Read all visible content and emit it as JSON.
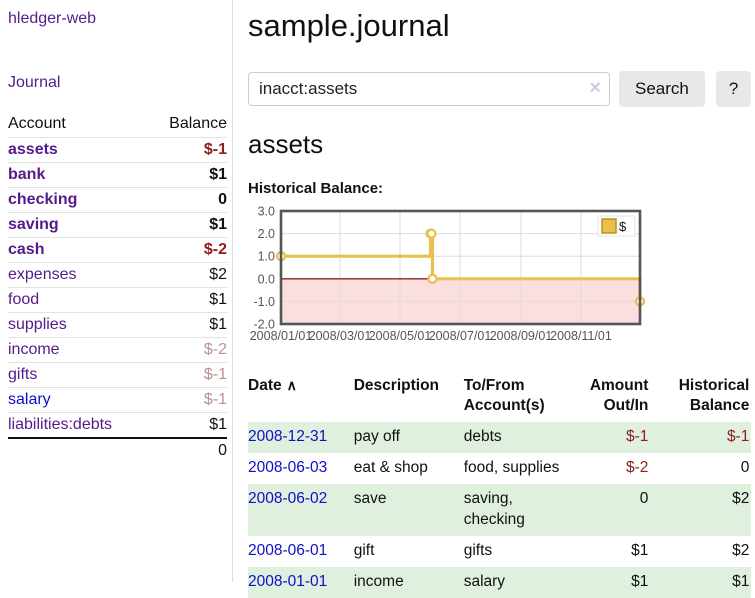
{
  "colors": {
    "purple-link": "#551a8b",
    "blue-link": "#0f0fc4",
    "negative-strong": "#8f1d1d",
    "negative-muted": "#bc8f8f",
    "row-green": "#dff0df",
    "button-bg": "#e8e8e8",
    "divider": "#dcdcdc",
    "chart-gold": "#e9c04d",
    "chart-gold-dark": "#b8941f",
    "chart-pink": "#fbdfdf",
    "chart-zero-line": "#8b2222",
    "chart-border": "#555555",
    "chart-grid": "#dddddd",
    "axis-text": "#555555"
  },
  "sidebar": {
    "app_title": "hledger-web",
    "journal_link": "Journal",
    "accounts": {
      "headers": {
        "account": "Account",
        "balance": "Balance"
      },
      "rows": [
        {
          "name": "assets",
          "balance": "$-1",
          "indent": 0,
          "bold": true
        },
        {
          "name": "bank",
          "balance": "$1",
          "indent": 1,
          "bold": true
        },
        {
          "name": "checking",
          "balance": "0",
          "indent": 2,
          "bold": true
        },
        {
          "name": "saving",
          "balance": "$1",
          "indent": 2,
          "bold": true
        },
        {
          "name": "cash",
          "balance": "$-2",
          "indent": 1,
          "bold": true
        },
        {
          "name": "expenses",
          "balance": "$2",
          "indent": 0,
          "bold": false
        },
        {
          "name": "food",
          "balance": "$1",
          "indent": 1,
          "bold": false
        },
        {
          "name": "supplies",
          "balance": "$1",
          "indent": 1,
          "bold": false
        },
        {
          "name": "income",
          "balance": "$-2",
          "indent": 0,
          "bold": false
        },
        {
          "name": "gifts",
          "balance": "$-1",
          "indent": 1,
          "bold": false
        },
        {
          "name": "salary",
          "balance": "$-1",
          "indent": 1,
          "bold": false,
          "link_color": "blue"
        },
        {
          "name": "liabilities:debts",
          "balance": "$1",
          "indent": 0,
          "bold": false
        }
      ],
      "total": "0"
    }
  },
  "main": {
    "title": "sample.journal",
    "search": {
      "value": "inacct:assets",
      "clear_icon": "×",
      "button": "Search",
      "help_button": "?"
    },
    "account_heading": "assets",
    "chart_title": "Historical Balance:"
  },
  "chart_data": {
    "type": "line",
    "step": true,
    "title": "Historical Balance:",
    "x_type": "date",
    "xlim": [
      "2008-01-01",
      "2008-12-31"
    ],
    "ylim": [
      -2,
      3
    ],
    "x_ticks": [
      {
        "label": "2008/01/01",
        "date": "2008-01-01"
      },
      {
        "label": "2008/03/01",
        "date": "2008-03-01"
      },
      {
        "label": "2008/05/01",
        "date": "2008-05-01"
      },
      {
        "label": "2008/07/01",
        "date": "2008-07-01"
      },
      {
        "label": "2008/09/01",
        "date": "2008-09-01"
      },
      {
        "label": "2008/11/01",
        "date": "2008-11-01"
      }
    ],
    "y_ticks": [
      {
        "label": "3.0",
        "value": 3
      },
      {
        "label": "2.0",
        "value": 2
      },
      {
        "label": "1.0",
        "value": 1
      },
      {
        "label": "0.0",
        "value": 0
      },
      {
        "label": "-1.0",
        "value": -1
      },
      {
        "label": "-2.0",
        "value": -2
      }
    ],
    "series": [
      {
        "name": "$",
        "points": [
          [
            "2008-01-01",
            1
          ],
          [
            "2008-06-01",
            2
          ],
          [
            "2008-06-02",
            2
          ],
          [
            "2008-06-03",
            0
          ],
          [
            "2008-12-31",
            -1
          ]
        ]
      }
    ],
    "legend": {
      "label": "$",
      "position": "top-right"
    },
    "grid": true,
    "negative_region_shaded": true
  },
  "register": {
    "headers": [
      {
        "label": "Date",
        "sort_icon": "∧",
        "align": "left"
      },
      {
        "label": "Description",
        "align": "left"
      },
      {
        "label": "To/From Account(s)",
        "align": "left"
      },
      {
        "label": "Amount Out/In",
        "align": "right"
      },
      {
        "label": "Historical Balance",
        "align": "right"
      }
    ],
    "rows": [
      {
        "date": "2008-12-31",
        "description": "pay off",
        "accounts": "debts",
        "amount": "$-1",
        "balance": "$-1"
      },
      {
        "date": "2008-06-03",
        "description": "eat & shop",
        "accounts": "food, supplies",
        "amount": "$-2",
        "balance": "0"
      },
      {
        "date": "2008-06-02",
        "description": "save",
        "accounts": "saving, checking",
        "amount": "0",
        "balance": "$2"
      },
      {
        "date": "2008-06-01",
        "description": "gift",
        "accounts": "gifts",
        "amount": "$1",
        "balance": "$2"
      },
      {
        "date": "2008-01-01",
        "description": "income",
        "accounts": "salary",
        "amount": "$1",
        "balance": "$1"
      }
    ]
  }
}
